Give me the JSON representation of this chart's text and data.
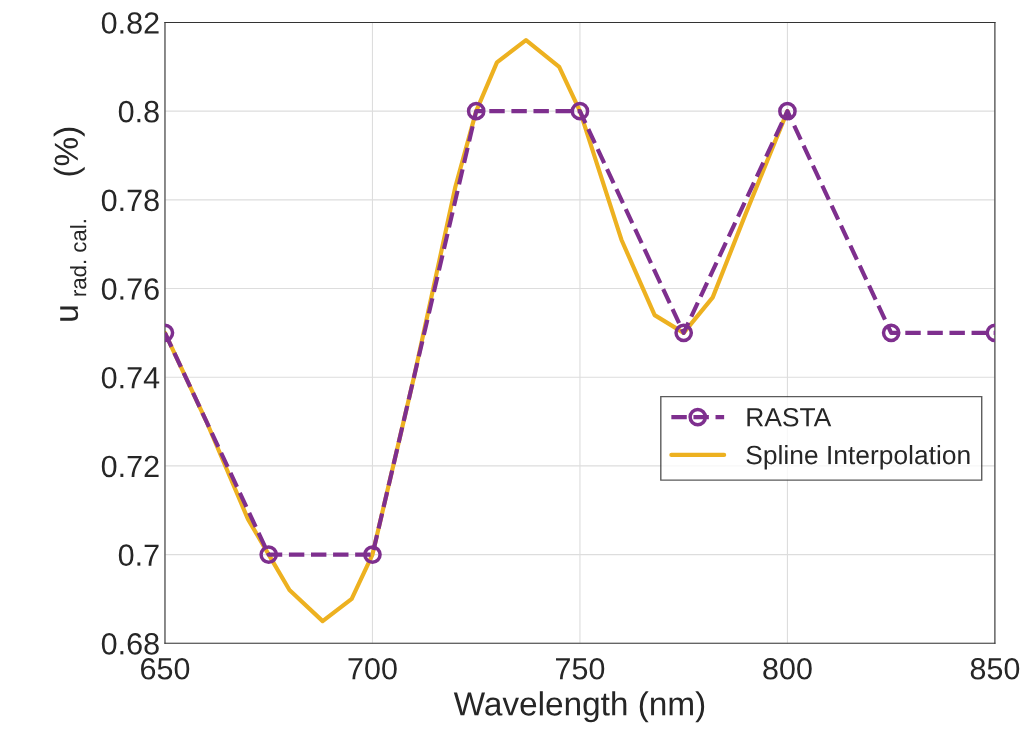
{
  "chart_data": {
    "type": "line",
    "xlabel": "Wavelength (nm)",
    "ylabel": "u$_{rad. cal.}$ (%)",
    "xlim": [
      650,
      850
    ],
    "xticks": [
      650,
      700,
      750,
      800,
      850
    ],
    "ylim": [
      0.68,
      0.82
    ],
    "yticks": [
      0.68,
      0.7,
      0.72,
      0.74,
      0.76,
      0.78,
      0.8,
      0.82
    ],
    "grid": true,
    "legend": "right",
    "series": [
      {
        "name": "RASTA",
        "color": "#7e2f8e",
        "marker": "circle",
        "line_style": "dashed",
        "x": [
          650,
          675,
          700,
          725,
          750,
          775,
          800,
          825,
          850
        ],
        "values": [
          0.75,
          0.7,
          0.7,
          0.8,
          0.8,
          0.75,
          0.8,
          0.75,
          0.75
        ]
      },
      {
        "name": "Spline Interpolation",
        "color": "#edb120",
        "marker": "none",
        "line_style": "solid",
        "x": [
          650,
          660,
          670,
          675,
          680,
          688,
          695,
          700,
          710,
          720,
          725,
          730,
          737,
          745,
          750,
          760,
          768,
          775,
          782,
          790,
          800
        ],
        "values": [
          0.75,
          0.73,
          0.708,
          0.7,
          0.692,
          0.685,
          0.69,
          0.7,
          0.74,
          0.783,
          0.8,
          0.811,
          0.816,
          0.81,
          0.8,
          0.771,
          0.754,
          0.75,
          0.758,
          0.777,
          0.8
        ]
      }
    ]
  }
}
